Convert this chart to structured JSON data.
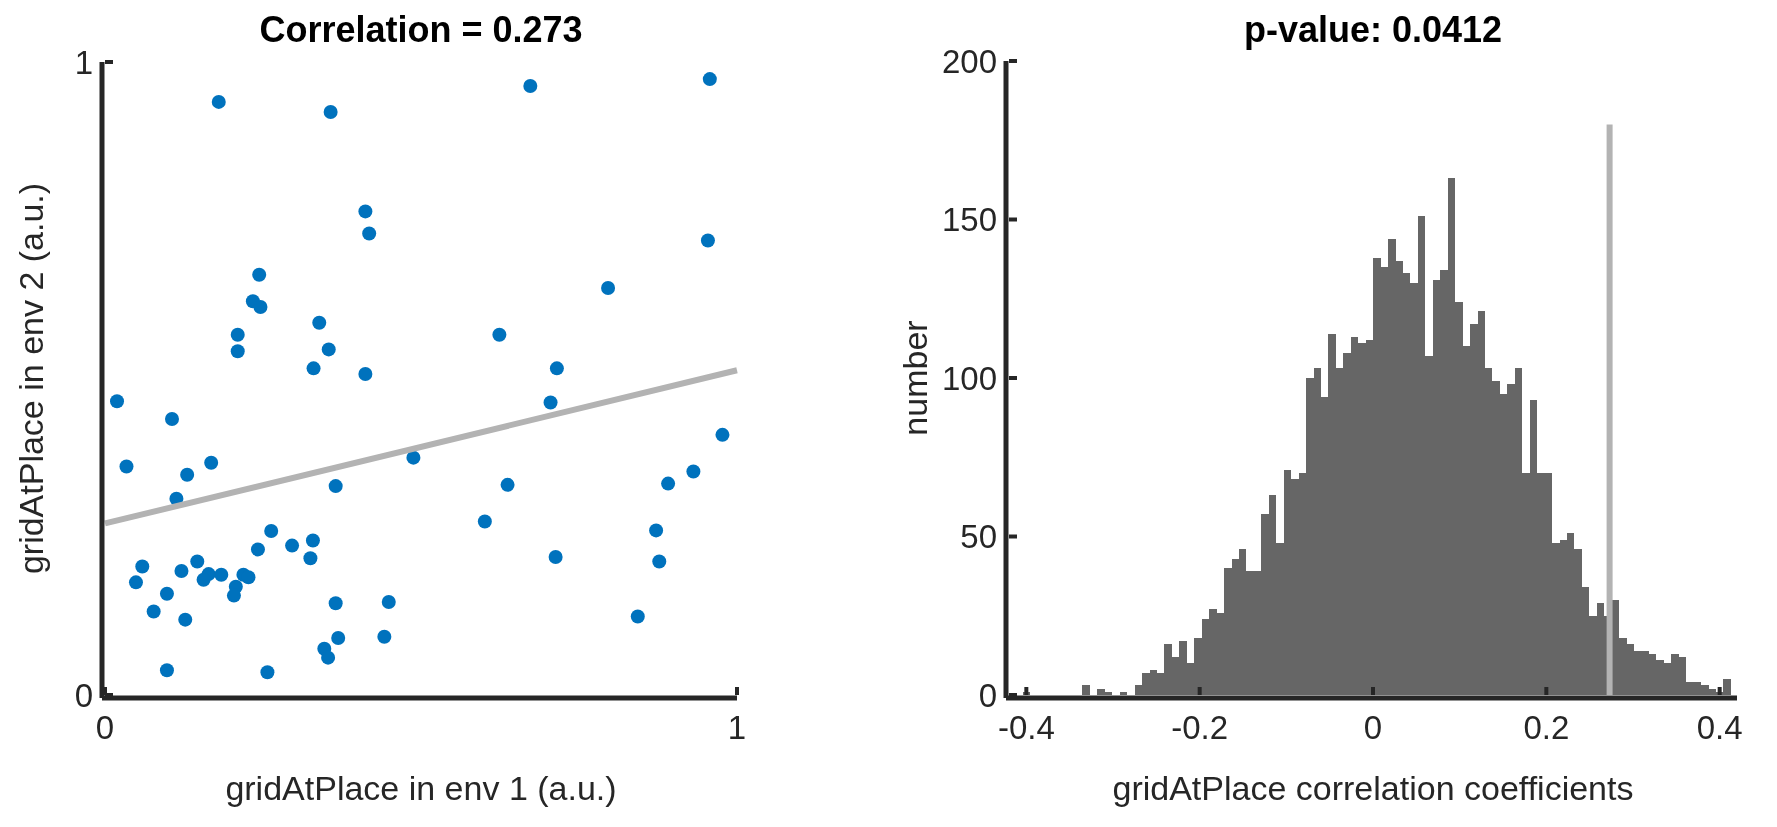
{
  "chart_data": [
    {
      "type": "scatter",
      "title": "Correlation = 0.273",
      "xlabel": "gridAtPlace in env 1 (a.u.)",
      "ylabel": "gridAtPlace in env 2 (a.u.)",
      "xlim": [
        0,
        1
      ],
      "ylim": [
        0,
        1
      ],
      "xticks": [
        0,
        1
      ],
      "yticks": [
        0,
        1
      ],
      "series": [
        {
          "type": "scatter",
          "marker": "circle",
          "color": "#0072bd",
          "x": [
            0.18,
            0.357,
            0.673,
            0.957,
            0.412,
            0.418,
            0.954,
            0.244,
            0.234,
            0.246,
            0.796,
            0.339,
            0.21,
            0.354,
            0.21,
            0.624,
            0.33,
            0.412,
            0.715,
            0.019,
            0.705,
            0.106,
            0.977,
            0.034,
            0.168,
            0.13,
            0.488,
            0.113,
            0.365,
            0.637,
            0.891,
            0.931,
            0.601,
            0.872,
            0.263,
            0.329,
            0.296,
            0.242,
            0.325,
            0.713,
            0.877,
            0.059,
            0.146,
            0.049,
            0.121,
            0.164,
            0.156,
            0.184,
            0.219,
            0.227,
            0.207,
            0.204,
            0.098,
            0.077,
            0.127,
            0.365,
            0.449,
            0.369,
            0.442,
            0.347,
            0.353,
            0.843,
            0.098,
            0.257
          ],
          "values": [
            0.937,
            0.921,
            0.962,
            0.973,
            0.764,
            0.729,
            0.718,
            0.664,
            0.622,
            0.613,
            0.643,
            0.588,
            0.569,
            0.546,
            0.543,
            0.569,
            0.516,
            0.507,
            0.516,
            0.464,
            0.462,
            0.436,
            0.411,
            0.361,
            0.367,
            0.348,
            0.375,
            0.31,
            0.33,
            0.332,
            0.334,
            0.353,
            0.274,
            0.26,
            0.259,
            0.244,
            0.236,
            0.23,
            0.216,
            0.218,
            0.211,
            0.203,
            0.211,
            0.178,
            0.196,
            0.191,
            0.182,
            0.19,
            0.19,
            0.186,
            0.171,
            0.157,
            0.16,
            0.132,
            0.119,
            0.145,
            0.147,
            0.09,
            0.092,
            0.073,
            0.059,
            0.124,
            0.039,
            0.036
          ]
        },
        {
          "type": "line",
          "color": "#b3b3b3",
          "x": [
            0,
            1
          ],
          "values": [
            0.271,
            0.513
          ]
        }
      ]
    },
    {
      "type": "histogram",
      "title": "p-value: 0.0412",
      "xlabel": "gridAtPlace correlation coefficients",
      "ylabel": "number",
      "color": "#666666",
      "xlim": [
        -0.42,
        0.42
      ],
      "ylim": [
        0,
        200
      ],
      "xticks": [
        {
          "value": -0.4,
          "label": "-0.4"
        },
        {
          "value": -0.2,
          "label": "-0.2"
        },
        0,
        0.2,
        0.4
      ],
      "yticks": [
        0,
        50,
        100,
        150,
        200
      ],
      "ref_lines": [
        {
          "axis": "x",
          "value": 0.273,
          "color": "#b3b3b3"
        }
      ],
      "bins": [
        -0.404,
        -0.3954,
        -0.3868,
        -0.3782,
        -0.3696,
        -0.361,
        -0.3524,
        -0.3438,
        -0.3352,
        -0.3266,
        -0.318,
        -0.3094,
        -0.3008,
        -0.2922,
        -0.2836,
        -0.275,
        -0.2664,
        -0.2578,
        -0.2492,
        -0.2406,
        -0.232,
        -0.2234,
        -0.2148,
        -0.2062,
        -0.1976,
        -0.189,
        -0.1804,
        -0.1718,
        -0.1632,
        -0.1546,
        -0.146,
        -0.1374,
        -0.1288,
        -0.1202,
        -0.1116,
        -0.103,
        -0.0944,
        -0.0858,
        -0.0772,
        -0.0686,
        -0.06,
        -0.0514,
        -0.0428,
        -0.0342,
        -0.0256,
        -0.017,
        -0.0084,
        0.0002,
        0.0088,
        0.0174,
        0.026,
        0.0346,
        0.0432,
        0.0518,
        0.0604,
        0.069,
        0.0776,
        0.0862,
        0.0948,
        0.1034,
        0.112,
        0.1206,
        0.1292,
        0.1378,
        0.1464,
        0.155,
        0.1636,
        0.1722,
        0.1808,
        0.1894,
        0.198,
        0.2066,
        0.2152,
        0.2238,
        0.2324,
        0.241,
        0.2496,
        0.2582,
        0.2668,
        0.2754,
        0.284,
        0.2926,
        0.3012,
        0.3098,
        0.3184,
        0.327,
        0.3356,
        0.3442,
        0.3528,
        0.3614,
        0.37,
        0.3786,
        0.3872,
        0.3958,
        0.4044,
        0.413
      ],
      "values": [
        1,
        0,
        0,
        0,
        0,
        0,
        0,
        0,
        3,
        0,
        2,
        1,
        0,
        1,
        0,
        3,
        7,
        8,
        7,
        16,
        12,
        17,
        10,
        18,
        24,
        27,
        26,
        40,
        43,
        46,
        39,
        39,
        57,
        63,
        48,
        71,
        68,
        70,
        100,
        103,
        94,
        114,
        103,
        108,
        113,
        111,
        112,
        138,
        135,
        144,
        137,
        133,
        130,
        151,
        107,
        131,
        134,
        163,
        124,
        110,
        117,
        121,
        103,
        99,
        95,
        98,
        103,
        70,
        93,
        70,
        70,
        48,
        49,
        51,
        46,
        34,
        25,
        29,
        25,
        30,
        18,
        16,
        14,
        14,
        13,
        11,
        10,
        13,
        12,
        4,
        4,
        3,
        2,
        1,
        5
      ]
    }
  ]
}
